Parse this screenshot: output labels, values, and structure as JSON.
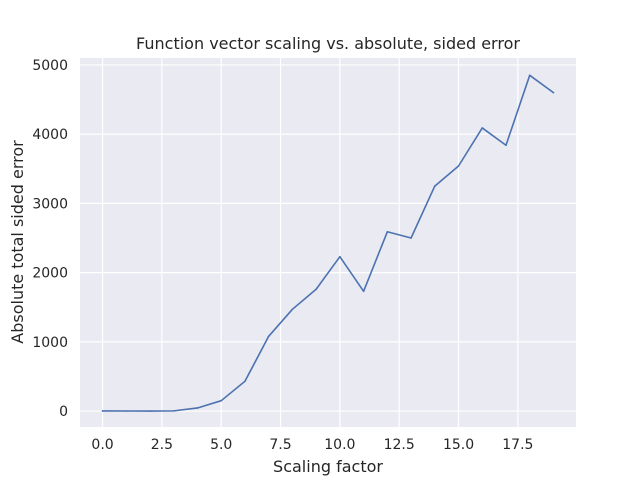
{
  "chart_data": {
    "type": "line",
    "title": "Function vector scaling vs. absolute, sided error",
    "xlabel": "Scaling factor",
    "ylabel": "Absolute total sided error",
    "xlim": [
      -0.95,
      19.95
    ],
    "ylim": [
      -230,
      5100
    ],
    "xticks": [
      0.0,
      2.5,
      5.0,
      7.5,
      10.0,
      12.5,
      15.0,
      17.5
    ],
    "xtick_labels": [
      "0.0",
      "2.5",
      "5.0",
      "7.5",
      "10.0",
      "12.5",
      "15.0",
      "17.5"
    ],
    "yticks": [
      0,
      1000,
      2000,
      3000,
      4000,
      5000
    ],
    "ytick_labels": [
      "0",
      "1000",
      "2000",
      "3000",
      "4000",
      "5000"
    ],
    "grid": true,
    "series": [
      {
        "color": "#4c72b0",
        "x": [
          0,
          1,
          2,
          3,
          4,
          5,
          6,
          7,
          8,
          9,
          10,
          11,
          12,
          13,
          14,
          15,
          16,
          17,
          18,
          19
        ],
        "y": [
          2,
          1,
          0,
          3,
          45,
          150,
          430,
          1080,
          1470,
          1760,
          2230,
          1730,
          2590,
          2500,
          3250,
          3540,
          4090,
          3840,
          4850,
          4600
        ]
      }
    ]
  }
}
